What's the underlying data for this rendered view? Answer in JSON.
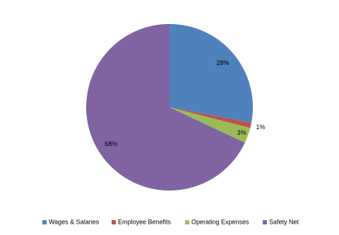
{
  "chart_data": {
    "type": "pie",
    "categories": [
      "Wages & Salaries",
      "Employee Benefits",
      "Operating Expenses",
      "Safety Net"
    ],
    "values": [
      28,
      1,
      3,
      68
    ],
    "value_labels": [
      "28%",
      "1%",
      "3%",
      "68%"
    ],
    "colors": [
      "#4f81bd",
      "#c0504d",
      "#9bbb59",
      "#8064a2"
    ],
    "legend": "bottom"
  }
}
